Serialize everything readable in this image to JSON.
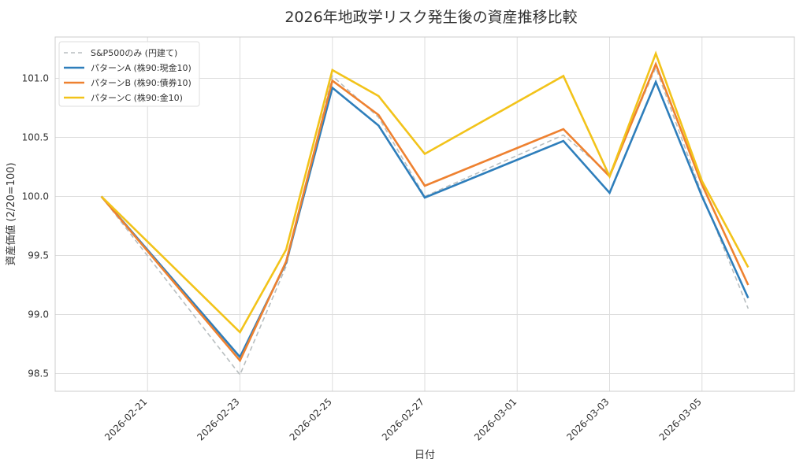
{
  "chart_data": {
    "type": "line",
    "title": "2026年地政学リスク発生後の資産推移比較",
    "xlabel": "日付",
    "ylabel": "資産価値 (2/20=100)",
    "x": [
      "2026-02-20",
      "2026-02-23",
      "2026-02-24",
      "2026-02-25",
      "2026-02-26",
      "2026-02-27",
      "2026-03-02",
      "2026-03-03",
      "2026-03-04",
      "2026-03-05",
      "2026-03-06"
    ],
    "xlim": [
      "2026-02-19",
      "2026-03-07"
    ],
    "ylim": [
      98.35,
      101.35
    ],
    "x_ticks": [
      "2026-02-21",
      "2026-02-23",
      "2026-02-25",
      "2026-02-27",
      "2026-03-01",
      "2026-03-03",
      "2026-03-05"
    ],
    "y_ticks": [
      "98.5",
      "99.0",
      "99.5",
      "100.0",
      "100.5",
      "101.0"
    ],
    "grid": true,
    "legend_position": "top-left",
    "series": [
      {
        "name": "S&P500のみ (円建て)",
        "color": "#b8bec0",
        "dashed": true,
        "values": [
          100.0,
          98.49,
          99.41,
          101.02,
          100.67,
          100.0,
          100.52,
          100.19,
          101.09,
          100.02,
          99.05
        ]
      },
      {
        "name": "パターンA (株90:現金10)",
        "color": "#2e7ebb",
        "dashed": false,
        "values": [
          100.0,
          98.64,
          99.44,
          100.92,
          100.6,
          99.99,
          100.47,
          100.03,
          100.97,
          100.0,
          99.14
        ]
      },
      {
        "name": "パターンB (株90:債券10)",
        "color": "#ee8130",
        "dashed": false,
        "values": [
          100.0,
          98.61,
          99.45,
          100.98,
          100.69,
          100.09,
          100.57,
          100.17,
          101.12,
          100.1,
          99.25
        ]
      },
      {
        "name": "パターンC (株90:金10)",
        "color": "#f2c31a",
        "dashed": false,
        "values": [
          100.0,
          98.85,
          99.55,
          101.07,
          100.85,
          100.36,
          101.02,
          100.17,
          101.21,
          100.13,
          99.4
        ]
      }
    ]
  }
}
